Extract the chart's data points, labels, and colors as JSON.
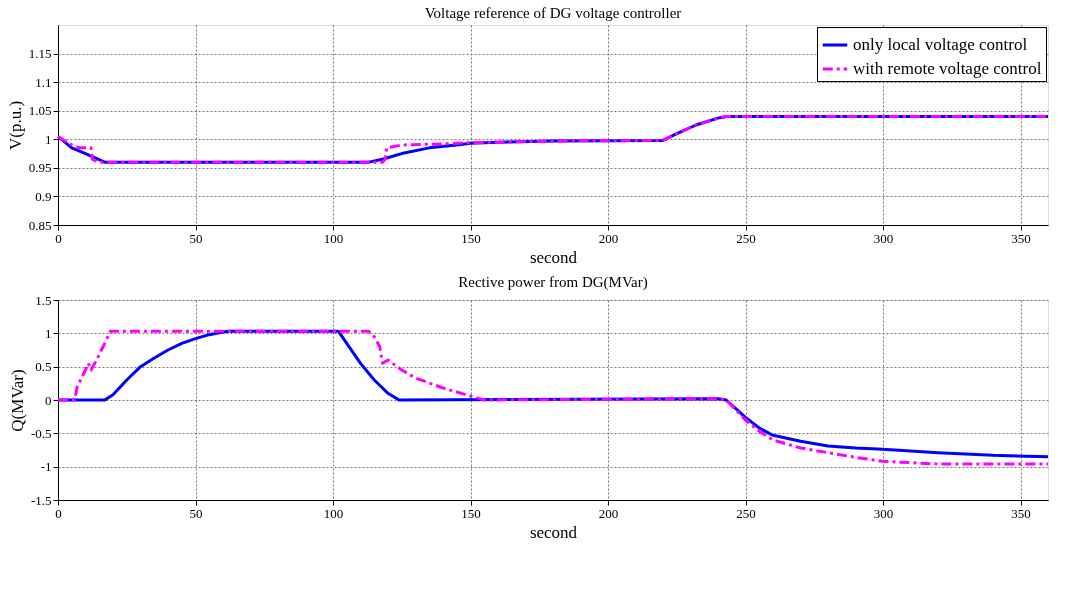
{
  "chart_data": [
    {
      "type": "line",
      "title": "Voltage reference of DG voltage controller",
      "xlabel": "second",
      "ylabel": "V(p.u.)",
      "xlim": [
        0,
        360
      ],
      "xticks": [
        0,
        50,
        100,
        150,
        200,
        250,
        300,
        350
      ],
      "ylim": [
        0.85,
        1.2
      ],
      "yticks": [
        0.85,
        0.9,
        0.95,
        1,
        1.05,
        1.1,
        1.15
      ],
      "grid": true,
      "legend": "top right",
      "series": [
        {
          "name": "only local voltage control",
          "color": "#0000ff",
          "line_style": "solid",
          "x": [
            0,
            5,
            10,
            17,
            113,
            118,
            125,
            135,
            145,
            150,
            160,
            180,
            220,
            225,
            232,
            240,
            243,
            360
          ],
          "values": [
            1.005,
            0.985,
            0.975,
            0.96,
            0.96,
            0.965,
            0.975,
            0.985,
            0.99,
            0.993,
            0.995,
            0.997,
            0.998,
            1.01,
            1.025,
            1.037,
            1.04,
            1.04
          ]
        },
        {
          "name": "with remote voltage control",
          "color": "#ff00ff",
          "line_style": "dashed",
          "x": [
            0,
            5,
            8,
            12,
            12.5,
            15,
            118,
            119,
            119.5,
            125,
            140,
            150,
            160,
            180,
            220,
            225,
            232,
            240,
            243,
            360
          ],
          "values": [
            1.005,
            0.99,
            0.985,
            0.985,
            0.965,
            0.96,
            0.96,
            0.965,
            0.985,
            0.99,
            0.992,
            0.994,
            0.995,
            0.997,
            0.998,
            1.01,
            1.025,
            1.037,
            1.04,
            1.04
          ]
        }
      ]
    },
    {
      "type": "line",
      "title": "Rective power from DG(MVar)",
      "xlabel": "second",
      "ylabel": "Q(MVar)",
      "xlim": [
        0,
        360
      ],
      "xticks": [
        0,
        50,
        100,
        150,
        200,
        250,
        300,
        350
      ],
      "ylim": [
        -1.5,
        1.5
      ],
      "yticks": [
        -1.5,
        -1,
        -0.5,
        0,
        0.5,
        1,
        1.5
      ],
      "grid": true,
      "legend": "top right",
      "series": [
        {
          "name": "only local voltage control",
          "color": "#0000ff",
          "line_style": "solid",
          "x": [
            0,
            17,
            20,
            25,
            30,
            35,
            40,
            45,
            50,
            55,
            60,
            62,
            102,
            105,
            110,
            115,
            120,
            124,
            240,
            243,
            250,
            255,
            260,
            270,
            280,
            290,
            300,
            320,
            340,
            360
          ],
          "values": [
            0,
            0,
            0.08,
            0.3,
            0.5,
            0.63,
            0.75,
            0.85,
            0.92,
            0.98,
            1.02,
            1.03,
            1.03,
            0.85,
            0.55,
            0.3,
            0.1,
            0,
            0.02,
            0,
            -0.26,
            -0.42,
            -0.53,
            -0.62,
            -0.69,
            -0.72,
            -0.74,
            -0.79,
            -0.83,
            -0.85
          ]
        },
        {
          "name": "with remote voltage control",
          "color": "#ff00ff",
          "line_style": "dashed",
          "x": [
            0,
            6,
            7,
            10,
            11,
            12,
            14,
            17,
            19,
            113,
            115,
            117,
            118,
            120,
            125,
            130,
            140,
            150,
            155,
            240,
            243,
            250,
            255,
            260,
            270,
            280,
            290,
            300,
            320,
            340,
            360
          ],
          "values": [
            0,
            0,
            0.2,
            0.45,
            0.55,
            0.45,
            0.6,
            0.85,
            1.03,
            1.03,
            0.95,
            0.8,
            0.55,
            0.6,
            0.45,
            0.33,
            0.18,
            0.06,
            0,
            0.02,
            0,
            -0.3,
            -0.47,
            -0.6,
            -0.72,
            -0.79,
            -0.86,
            -0.92,
            -0.96,
            -0.96,
            -0.96
          ]
        }
      ]
    }
  ]
}
